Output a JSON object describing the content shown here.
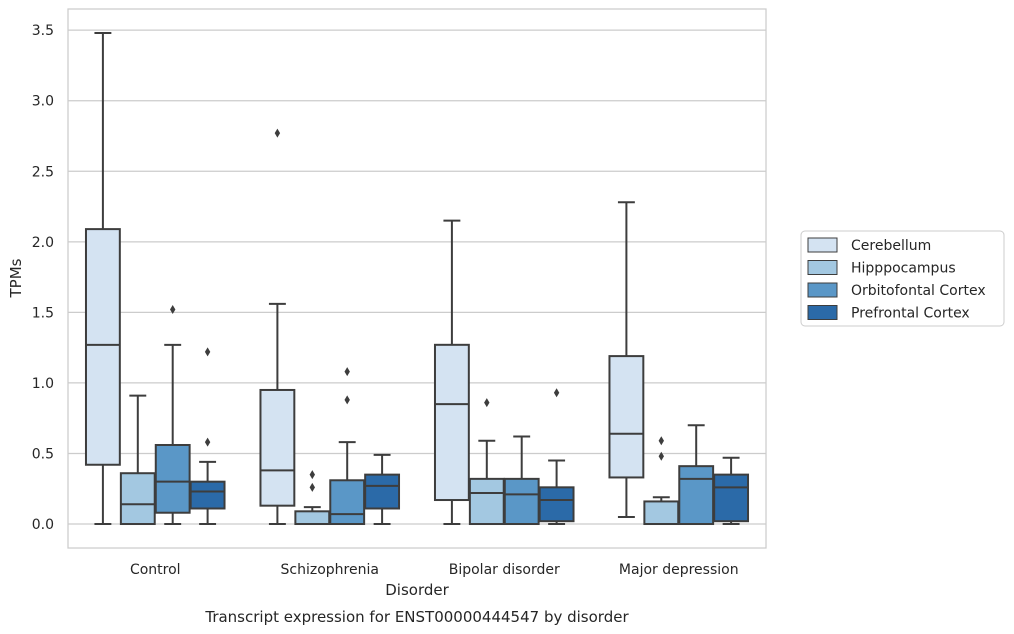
{
  "chart_data": {
    "type": "boxplot",
    "caption": "Transcript expression for ENST00000444547 by disorder",
    "xlabel": "Disorder",
    "ylabel": "TPMs",
    "ylim": [
      -0.17,
      3.65
    ],
    "yticks": [
      0.0,
      0.5,
      1.0,
      1.5,
      2.0,
      2.5,
      3.0,
      3.5
    ],
    "ytick_labels": [
      "0.0",
      "0.5",
      "1.0",
      "1.5",
      "2.0",
      "2.5",
      "3.0",
      "3.5"
    ],
    "grid": "horizontal",
    "legend_position": "right",
    "categories": [
      "Control",
      "Schizophrenia",
      "Bipolar disorder",
      "Major depression"
    ],
    "series": [
      {
        "name": "Cerebellum",
        "color": "#d4e3f2",
        "boxes": [
          {
            "whislo": 0.0,
            "q1": 0.42,
            "med": 1.27,
            "q3": 2.09,
            "whishi": 3.48,
            "fliers": []
          },
          {
            "whislo": 0.0,
            "q1": 0.13,
            "med": 0.38,
            "q3": 0.95,
            "whishi": 1.56,
            "fliers": [
              2.77
            ]
          },
          {
            "whislo": 0.0,
            "q1": 0.17,
            "med": 0.85,
            "q3": 1.27,
            "whishi": 2.15,
            "fliers": []
          },
          {
            "whislo": 0.05,
            "q1": 0.33,
            "med": 0.64,
            "q3": 1.19,
            "whishi": 2.28,
            "fliers": []
          }
        ]
      },
      {
        "name": "Hipppocampus",
        "color": "#a3c8e1",
        "boxes": [
          {
            "whislo": 0.0,
            "q1": 0.0,
            "med": 0.14,
            "q3": 0.36,
            "whishi": 0.91,
            "fliers": []
          },
          {
            "whislo": 0.0,
            "q1": 0.0,
            "med": 0.0,
            "q3": 0.09,
            "whishi": 0.12,
            "fliers": [
              0.35,
              0.26
            ]
          },
          {
            "whislo": 0.0,
            "q1": 0.0,
            "med": 0.22,
            "q3": 0.32,
            "whishi": 0.59,
            "fliers": [
              0.86
            ]
          },
          {
            "whislo": 0.0,
            "q1": 0.0,
            "med": 0.0,
            "q3": 0.16,
            "whishi": 0.19,
            "fliers": [
              0.59,
              0.48
            ]
          }
        ]
      },
      {
        "name": "Orbitofontal Cortex",
        "color": "#5a97c7",
        "boxes": [
          {
            "whislo": 0.0,
            "q1": 0.08,
            "med": 0.3,
            "q3": 0.56,
            "whishi": 1.27,
            "fliers": [
              1.52
            ]
          },
          {
            "whislo": 0.0,
            "q1": 0.0,
            "med": 0.07,
            "q3": 0.31,
            "whishi": 0.58,
            "fliers": [
              1.08,
              0.88
            ]
          },
          {
            "whislo": 0.0,
            "q1": 0.0,
            "med": 0.21,
            "q3": 0.32,
            "whishi": 0.62,
            "fliers": []
          },
          {
            "whislo": 0.0,
            "q1": 0.0,
            "med": 0.32,
            "q3": 0.41,
            "whishi": 0.7,
            "fliers": []
          }
        ]
      },
      {
        "name": "Prefrontal Cortex",
        "color": "#2b6aa8",
        "boxes": [
          {
            "whislo": 0.0,
            "q1": 0.11,
            "med": 0.23,
            "q3": 0.3,
            "whishi": 0.44,
            "fliers": [
              1.22,
              0.58
            ]
          },
          {
            "whislo": 0.0,
            "q1": 0.11,
            "med": 0.27,
            "q3": 0.35,
            "whishi": 0.49,
            "fliers": []
          },
          {
            "whislo": 0.0,
            "q1": 0.02,
            "med": 0.17,
            "q3": 0.26,
            "whishi": 0.45,
            "fliers": [
              0.93
            ]
          },
          {
            "whislo": 0.0,
            "q1": 0.02,
            "med": 0.26,
            "q3": 0.35,
            "whishi": 0.47,
            "fliers": []
          }
        ]
      }
    ]
  }
}
